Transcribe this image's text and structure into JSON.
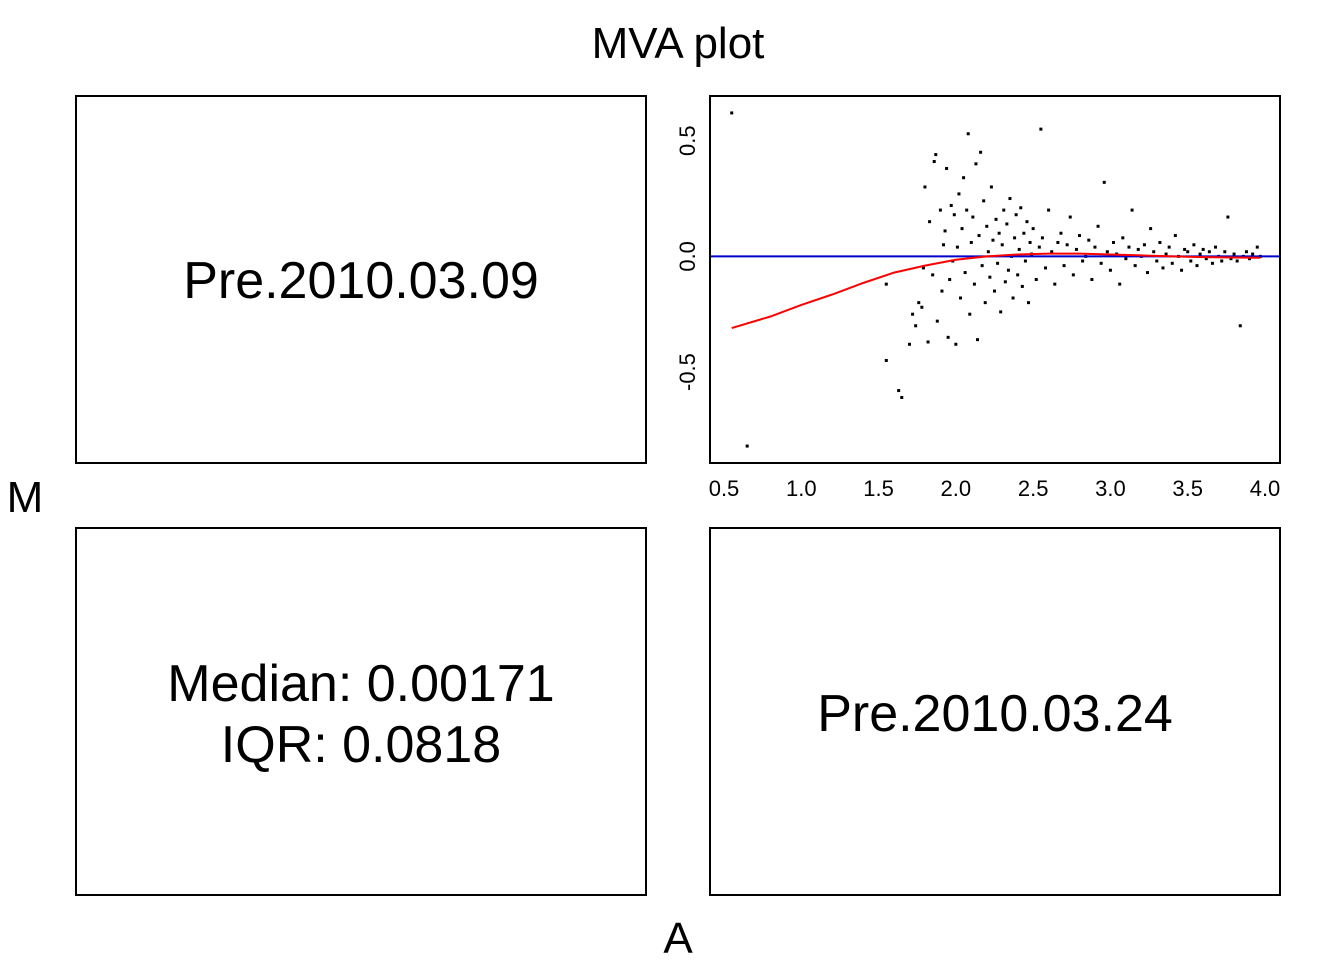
{
  "title": "MVA plot",
  "xlabel": "A",
  "ylabel": "M",
  "panels": {
    "top_left_label": "Pre.2010.03.09",
    "bottom_right_label": "Pre.2010.03.24",
    "stats": {
      "median_line": "Median: 0.00171",
      "iqr_line": "IQR: 0.0818"
    }
  },
  "colors": {
    "points": "#000000",
    "loess": "#ff0000",
    "reference": "#0000cc"
  },
  "chart_data": {
    "type": "scatter",
    "title": "MVA plot",
    "xlabel": "A",
    "ylabel": "M",
    "xlim": [
      0.5,
      4.0
    ],
    "ylim": [
      -0.85,
      0.65
    ],
    "x_ticks": [
      "0.5",
      "1.0",
      "1.5",
      "2.0",
      "2.5",
      "3.0",
      "3.5",
      "4.0"
    ],
    "y_ticks": [
      "-0.5",
      "0.0",
      "0.5"
    ],
    "reference_line_y": 0.0,
    "loess_curve": [
      [
        0.55,
        -0.31
      ],
      [
        0.8,
        -0.26
      ],
      [
        1.0,
        -0.21
      ],
      [
        1.2,
        -0.165
      ],
      [
        1.4,
        -0.115
      ],
      [
        1.6,
        -0.07
      ],
      [
        1.8,
        -0.04
      ],
      [
        2.0,
        -0.015
      ],
      [
        2.2,
        0.0
      ],
      [
        2.4,
        0.008
      ],
      [
        2.6,
        0.012
      ],
      [
        2.8,
        0.012
      ],
      [
        3.0,
        0.008
      ],
      [
        3.2,
        0.004
      ],
      [
        3.4,
        0.0
      ],
      [
        3.6,
        -0.003
      ],
      [
        3.8,
        -0.005
      ],
      [
        3.97,
        -0.006
      ]
    ],
    "points": [
      [
        0.55,
        0.62
      ],
      [
        0.65,
        -0.82
      ],
      [
        1.55,
        -0.45
      ],
      [
        1.55,
        -0.12
      ],
      [
        1.63,
        -0.58
      ],
      [
        1.65,
        -0.61
      ],
      [
        1.7,
        -0.38
      ],
      [
        1.72,
        -0.25
      ],
      [
        1.74,
        -0.3
      ],
      [
        1.76,
        -0.2
      ],
      [
        1.78,
        -0.22
      ],
      [
        1.79,
        -0.05
      ],
      [
        1.8,
        0.3
      ],
      [
        1.82,
        -0.37
      ],
      [
        1.83,
        0.15
      ],
      [
        1.85,
        -0.08
      ],
      [
        1.86,
        0.41
      ],
      [
        1.87,
        0.44
      ],
      [
        1.88,
        -0.28
      ],
      [
        1.9,
        0.2
      ],
      [
        1.91,
        -0.15
      ],
      [
        1.92,
        0.05
      ],
      [
        1.93,
        0.11
      ],
      [
        1.94,
        0.38
      ],
      [
        1.95,
        -0.35
      ],
      [
        1.96,
        -0.1
      ],
      [
        1.97,
        0.22
      ],
      [
        1.98,
        -0.02
      ],
      [
        1.99,
        0.18
      ],
      [
        2.0,
        -0.38
      ],
      [
        2.01,
        0.04
      ],
      [
        2.02,
        0.27
      ],
      [
        2.03,
        -0.18
      ],
      [
        2.04,
        0.12
      ],
      [
        2.05,
        0.34
      ],
      [
        2.06,
        -0.07
      ],
      [
        2.07,
        0.2
      ],
      [
        2.08,
        0.53
      ],
      [
        2.09,
        -0.25
      ],
      [
        2.1,
        0.06
      ],
      [
        2.11,
        0.17
      ],
      [
        2.12,
        -0.12
      ],
      [
        2.13,
        0.4
      ],
      [
        2.14,
        -0.36
      ],
      [
        2.15,
        0.09
      ],
      [
        2.16,
        0.45
      ],
      [
        2.17,
        -0.04
      ],
      [
        2.18,
        0.24
      ],
      [
        2.19,
        -0.2
      ],
      [
        2.2,
        0.13
      ],
      [
        2.21,
        0.02
      ],
      [
        2.22,
        -0.09
      ],
      [
        2.23,
        0.3
      ],
      [
        2.24,
        0.07
      ],
      [
        2.25,
        -0.15
      ],
      [
        2.26,
        0.16
      ],
      [
        2.27,
        -0.03
      ],
      [
        2.28,
        0.1
      ],
      [
        2.29,
        -0.24
      ],
      [
        2.3,
        0.05
      ],
      [
        2.31,
        0.2
      ],
      [
        2.32,
        -0.11
      ],
      [
        2.33,
        0.14
      ],
      [
        2.34,
        -0.06
      ],
      [
        2.35,
        0.25
      ],
      [
        2.36,
        0.0
      ],
      [
        2.37,
        -0.18
      ],
      [
        2.38,
        0.08
      ],
      [
        2.39,
        0.18
      ],
      [
        2.4,
        -0.08
      ],
      [
        2.41,
        0.03
      ],
      [
        2.42,
        0.21
      ],
      [
        2.43,
        -0.13
      ],
      [
        2.44,
        0.1
      ],
      [
        2.45,
        -0.02
      ],
      [
        2.46,
        0.15
      ],
      [
        2.47,
        -0.2
      ],
      [
        2.48,
        0.06
      ],
      [
        2.49,
        0.01
      ],
      [
        2.5,
        0.12
      ],
      [
        2.52,
        -0.1
      ],
      [
        2.54,
        0.04
      ],
      [
        2.55,
        0.55
      ],
      [
        2.56,
        0.08
      ],
      [
        2.58,
        -0.05
      ],
      [
        2.6,
        0.2
      ],
      [
        2.62,
        0.02
      ],
      [
        2.64,
        -0.12
      ],
      [
        2.66,
        0.06
      ],
      [
        2.68,
        0.1
      ],
      [
        2.7,
        -0.04
      ],
      [
        2.72,
        0.05
      ],
      [
        2.74,
        0.17
      ],
      [
        2.76,
        -0.08
      ],
      [
        2.78,
        0.03
      ],
      [
        2.8,
        0.09
      ],
      [
        2.82,
        -0.02
      ],
      [
        2.84,
        0.0
      ],
      [
        2.86,
        0.07
      ],
      [
        2.88,
        -0.1
      ],
      [
        2.9,
        0.04
      ],
      [
        2.92,
        0.13
      ],
      [
        2.94,
        -0.03
      ],
      [
        2.96,
        0.32
      ],
      [
        2.98,
        0.02
      ],
      [
        3.0,
        -0.06
      ],
      [
        3.02,
        0.06
      ],
      [
        3.04,
        0.01
      ],
      [
        3.06,
        -0.12
      ],
      [
        3.08,
        0.08
      ],
      [
        3.1,
        -0.01
      ],
      [
        3.12,
        0.04
      ],
      [
        3.14,
        0.2
      ],
      [
        3.16,
        -0.04
      ],
      [
        3.18,
        0.03
      ],
      [
        3.2,
        0.0
      ],
      [
        3.22,
        0.05
      ],
      [
        3.24,
        -0.07
      ],
      [
        3.26,
        0.12
      ],
      [
        3.28,
        0.02
      ],
      [
        3.3,
        -0.02
      ],
      [
        3.32,
        0.06
      ],
      [
        3.34,
        -0.05
      ],
      [
        3.36,
        0.01
      ],
      [
        3.38,
        0.04
      ],
      [
        3.4,
        -0.03
      ],
      [
        3.42,
        0.09
      ],
      [
        3.44,
        0.0
      ],
      [
        3.46,
        -0.06
      ],
      [
        3.48,
        0.03
      ],
      [
        3.5,
        0.02
      ],
      [
        3.52,
        -0.02
      ],
      [
        3.54,
        0.05
      ],
      [
        3.56,
        -0.04
      ],
      [
        3.58,
        0.01
      ],
      [
        3.6,
        0.03
      ],
      [
        3.62,
        -0.01
      ],
      [
        3.64,
        0.02
      ],
      [
        3.66,
        -0.03
      ],
      [
        3.68,
        0.04
      ],
      [
        3.7,
        0.0
      ],
      [
        3.72,
        -0.02
      ],
      [
        3.74,
        0.02
      ],
      [
        3.76,
        0.17
      ],
      [
        3.78,
        -0.01
      ],
      [
        3.8,
        0.01
      ],
      [
        3.82,
        -0.02
      ],
      [
        3.84,
        -0.3
      ],
      [
        3.86,
        0.0
      ],
      [
        3.88,
        0.02
      ],
      [
        3.9,
        -0.01
      ],
      [
        3.92,
        0.01
      ],
      [
        3.95,
        0.04
      ],
      [
        3.97,
        0.0
      ]
    ]
  }
}
